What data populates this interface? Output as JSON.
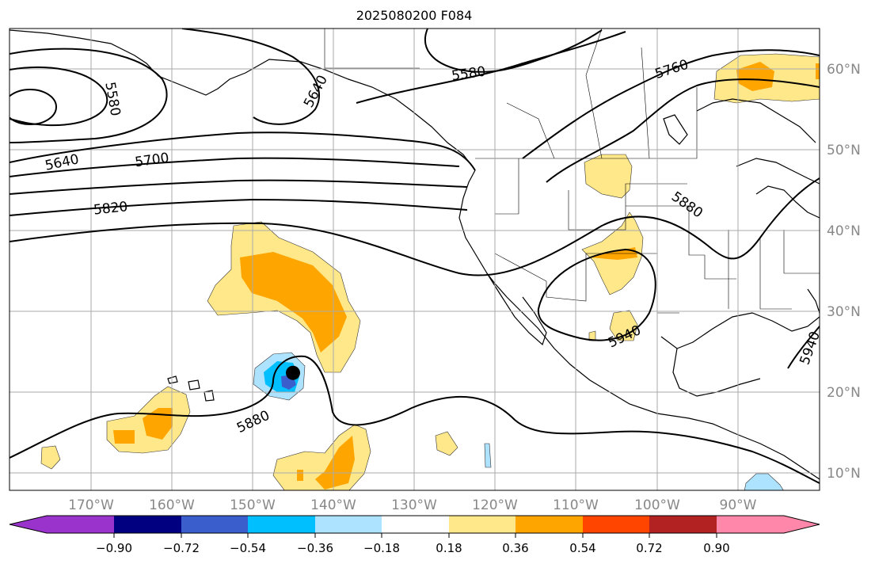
{
  "title": "2025080200 F084",
  "map": {
    "lon_labels": [
      "170°W",
      "160°W",
      "150°W",
      "140°W",
      "130°W",
      "120°W",
      "110°W",
      "100°W",
      "90°W"
    ],
    "lat_labels": [
      "10°N",
      "20°N",
      "30°N",
      "40°N",
      "50°N",
      "60°N"
    ],
    "contour_labels": {
      "c5580_left": "5580",
      "c5580_top": "5580",
      "c5640_left": "5640",
      "c5640_mid": "5640",
      "c5700": "5700",
      "c5760": "5760",
      "c5820": "5820",
      "c5880_east": "5880",
      "c5880_south": "5880",
      "c5940_mx": "5940",
      "c5940_fl": "5940"
    },
    "storm_marker": {
      "lon": -145,
      "lat": 22.5
    }
  },
  "colorbar": {
    "ticks": [
      "−0.90",
      "−0.72",
      "−0.54",
      "−0.36",
      "−0.18",
      "0.18",
      "0.36",
      "0.54",
      "0.72",
      "0.90"
    ],
    "colors": {
      "lt_m090": "#9933cc",
      "m090_m072": "#000080",
      "m072_m054": "#3a5fcd",
      "m054_m036": "#00bfff",
      "m036_m018": "#aee3ff",
      "m018_018": "#ffffff",
      "p018_036": "#ffe88a",
      "p036_054": "#ffa500",
      "p054_072": "#ff4500",
      "p072_090": "#b22222",
      "gt_090": "#ff88aa"
    }
  }
}
